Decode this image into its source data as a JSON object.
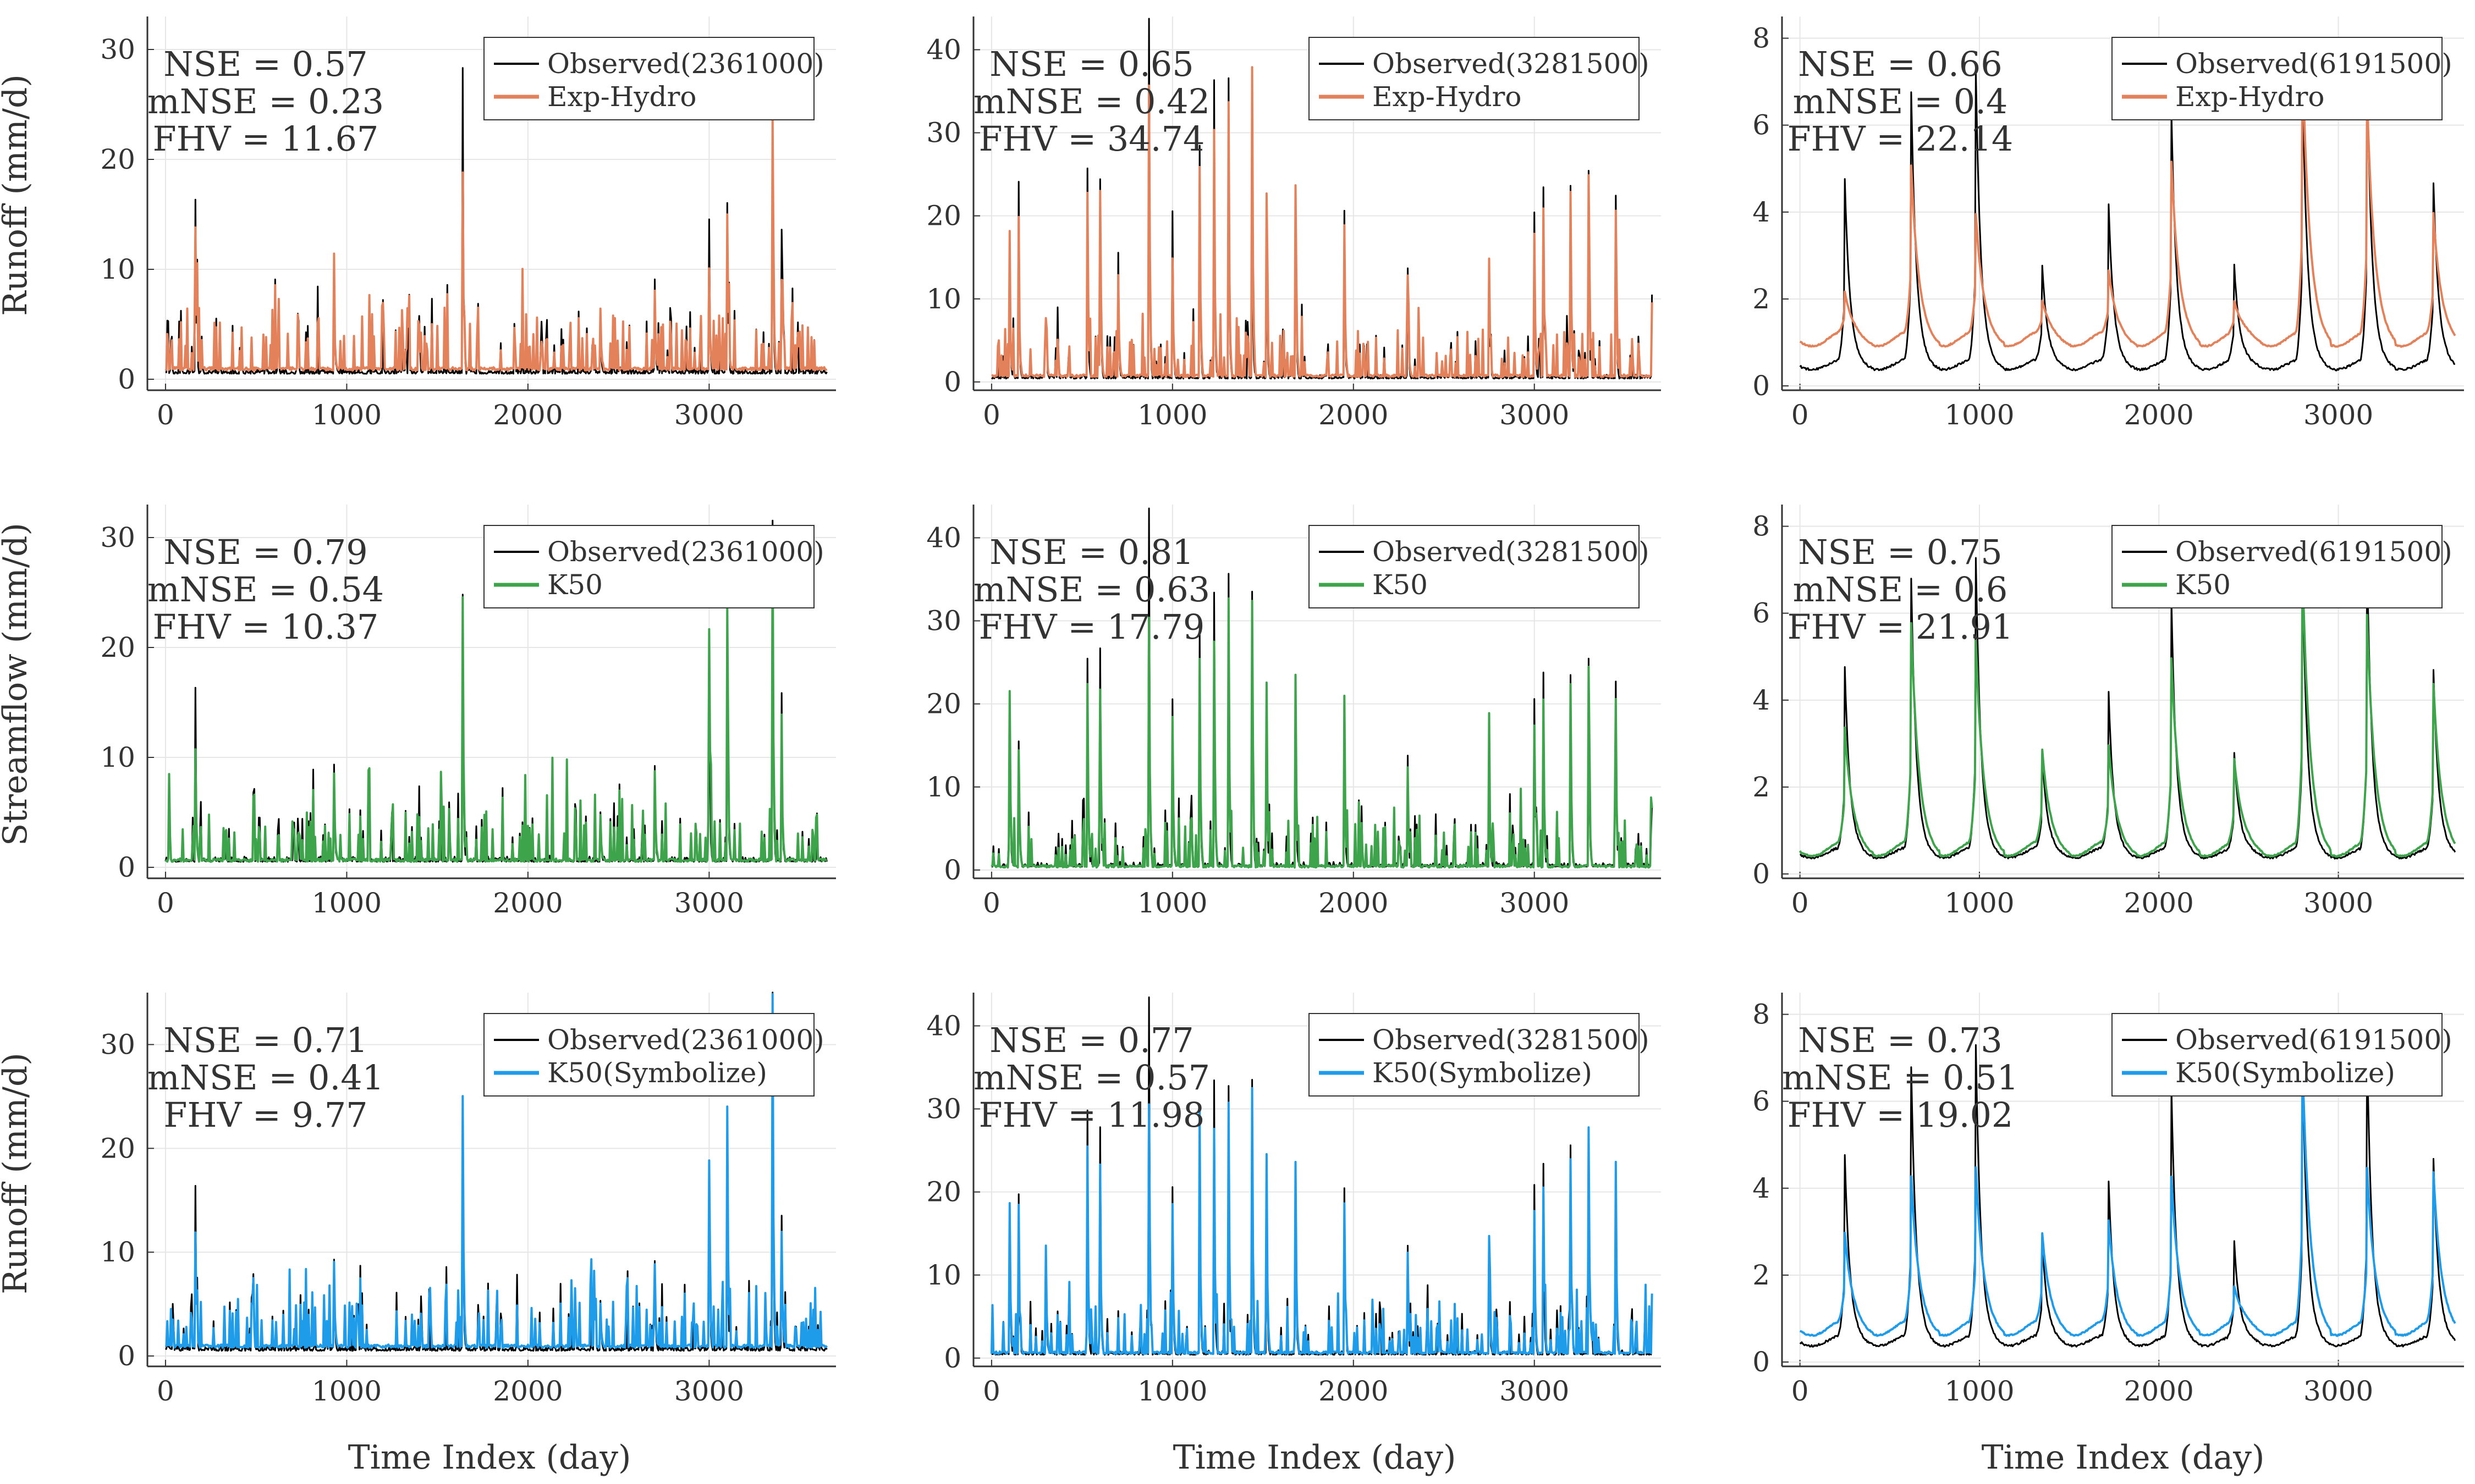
{
  "row_ylabels": [
    "Runoff (mm/d)",
    "Streamflow (mm/d)",
    "Runoff (mm/d)"
  ],
  "xlabel": "Time Index (day)",
  "colors": {
    "observed": "#000000",
    "exp_hydro": "#e2815a",
    "k50": "#3ea44b",
    "k50_symbolize": "#1e9be9"
  },
  "chart_data": [
    {
      "type": "line",
      "row": 0,
      "col": 0,
      "xlim": [
        -100,
        3700
      ],
      "ylim": [
        -1,
        33
      ],
      "xticks": [
        0,
        1000,
        2000,
        3000
      ],
      "yticks": [
        0,
        10,
        20,
        30
      ],
      "tick_labels_x": [
        "0",
        "1000",
        "2000",
        "3000"
      ],
      "tick_labels_y": [
        "0",
        "10",
        "20",
        "30"
      ],
      "metrics": [
        "NSE = 0.57",
        "mNSE = 0.23",
        "FHV = 11.67"
      ],
      "series": [
        {
          "name": "Observed(2361000)",
          "color": "#000000"
        },
        {
          "name": "Exp-Hydro",
          "color": "#e2815a"
        }
      ],
      "profile": "flashy",
      "peaks": [
        [
          165,
          15.8,
          13.0
        ],
        [
          930,
          8.7,
          6.5
        ],
        [
          1640,
          24.0,
          16.0
        ],
        [
          3000,
          14.0,
          9.0
        ],
        [
          3100,
          15.5,
          14.0
        ],
        [
          3350,
          24.0,
          23.0
        ],
        [
          3400,
          13.0,
          8.0
        ],
        [
          2700,
          8.5,
          7.0
        ],
        [
          2400,
          4.5,
          5.5
        ]
      ],
      "base": [
        0.5,
        0.8
      ]
    },
    {
      "type": "line",
      "row": 0,
      "col": 1,
      "xlim": [
        -100,
        3700
      ],
      "ylim": [
        -1,
        44
      ],
      "xticks": [
        0,
        1000,
        2000,
        3000
      ],
      "yticks": [
        0,
        10,
        20,
        30,
        40
      ],
      "tick_labels_x": [
        "0",
        "1000",
        "2000",
        "3000"
      ],
      "tick_labels_y": [
        "0",
        "10",
        "20",
        "30",
        "40"
      ],
      "metrics": [
        "NSE = 0.65",
        "mNSE = 0.42",
        "FHV = 34.74"
      ],
      "series": [
        {
          "name": "Observed(3281500)",
          "color": "#000000"
        },
        {
          "name": "Exp-Hydro",
          "color": "#e2815a"
        }
      ],
      "profile": "flashy",
      "peaks": [
        [
          100,
          15,
          12
        ],
        [
          150,
          17,
          14
        ],
        [
          300,
          7,
          7
        ],
        [
          530,
          25,
          22
        ],
        [
          600,
          24,
          20
        ],
        [
          700,
          15,
          12
        ],
        [
          870,
          43,
          35
        ],
        [
          1000,
          20,
          14
        ],
        [
          1150,
          28,
          25
        ],
        [
          1230,
          33,
          27
        ],
        [
          1310,
          32,
          30
        ],
        [
          1440,
          24,
          37
        ],
        [
          1520,
          20,
          22
        ],
        [
          1680,
          23,
          23
        ],
        [
          1950,
          20,
          18
        ],
        [
          2300,
          13,
          12
        ],
        [
          2750,
          13,
          14
        ],
        [
          3000,
          20,
          17
        ],
        [
          3050,
          23,
          20
        ],
        [
          3200,
          23,
          22
        ],
        [
          3300,
          25,
          24
        ],
        [
          3450,
          22,
          20
        ],
        [
          3650,
          7,
          7
        ]
      ],
      "base": [
        0.4,
        0.6
      ]
    },
    {
      "type": "line",
      "row": 0,
      "col": 2,
      "xlim": [
        -100,
        3700
      ],
      "ylim": [
        -0.1,
        8.5
      ],
      "xticks": [
        0,
        1000,
        2000,
        3000
      ],
      "yticks": [
        0,
        2,
        4,
        6,
        8
      ],
      "tick_labels_x": [
        "0",
        "1000",
        "2000",
        "3000"
      ],
      "tick_labels_y": [
        "0",
        "2",
        "4",
        "6",
        "8"
      ],
      "metrics": [
        "NSE = 0.66",
        "mNSE = 0.4",
        "FHV = 22.14"
      ],
      "series": [
        {
          "name": "Observed(6191500)",
          "color": "#000000"
        },
        {
          "name": "Exp-Hydro",
          "color": "#e2815a"
        }
      ],
      "profile": "seasonal",
      "peaks": [
        [
          250,
          4.5,
          1.8
        ],
        [
          620,
          6.5,
          4.7
        ],
        [
          980,
          7.0,
          3.6
        ],
        [
          1350,
          2.5,
          1.6
        ],
        [
          1720,
          3.9,
          2.3
        ],
        [
          2070,
          6.0,
          4.8
        ],
        [
          2420,
          2.5,
          1.6
        ],
        [
          2800,
          6.8,
          7.2
        ],
        [
          3160,
          7.0,
          6.3
        ],
        [
          3530,
          4.4,
          3.6
        ]
      ],
      "base": [
        0.35,
        0.9
      ]
    },
    {
      "type": "line",
      "row": 1,
      "col": 0,
      "xlim": [
        -100,
        3700
      ],
      "ylim": [
        -1,
        33
      ],
      "xticks": [
        0,
        1000,
        2000,
        3000
      ],
      "yticks": [
        0,
        10,
        20,
        30
      ],
      "tick_labels_x": [
        "0",
        "1000",
        "2000",
        "3000"
      ],
      "tick_labels_y": [
        "0",
        "10",
        "20",
        "30"
      ],
      "metrics": [
        "NSE = 0.79",
        "mNSE = 0.54",
        "FHV = 10.37"
      ],
      "series": [
        {
          "name": "Observed(2361000)",
          "color": "#000000"
        },
        {
          "name": "K50",
          "color": "#3ea44b"
        }
      ],
      "profile": "flashy",
      "peaks": [
        [
          165,
          15.8,
          10.0
        ],
        [
          930,
          8.7,
          8.0
        ],
        [
          1640,
          24.0,
          24.0
        ],
        [
          3000,
          21.0,
          21.0
        ],
        [
          3100,
          23.0,
          23.0
        ],
        [
          3350,
          31.0,
          30.0
        ],
        [
          3400,
          13.0,
          11.0
        ],
        [
          2700,
          8.5,
          8.0
        ],
        [
          2400,
          4.5,
          4.0
        ]
      ],
      "base": [
        0.5,
        0.5
      ]
    },
    {
      "type": "line",
      "row": 1,
      "col": 1,
      "xlim": [
        -100,
        3700
      ],
      "ylim": [
        -1,
        44
      ],
      "xticks": [
        0,
        1000,
        2000,
        3000
      ],
      "yticks": [
        0,
        10,
        20,
        30,
        40
      ],
      "tick_labels_x": [
        "0",
        "1000",
        "2000",
        "3000"
      ],
      "tick_labels_y": [
        "0",
        "10",
        "20",
        "30",
        "40"
      ],
      "metrics": [
        "NSE = 0.81",
        "mNSE = 0.63",
        "FHV = 17.79"
      ],
      "series": [
        {
          "name": "Observed(3281500)",
          "color": "#000000"
        },
        {
          "name": "K50",
          "color": "#3ea44b"
        }
      ],
      "profile": "flashy",
      "peaks": [
        [
          100,
          21,
          21
        ],
        [
          150,
          15,
          14
        ],
        [
          530,
          25,
          22
        ],
        [
          600,
          24,
          20
        ],
        [
          870,
          43,
          30
        ],
        [
          1000,
          20,
          18
        ],
        [
          1150,
          28,
          25
        ],
        [
          1230,
          33,
          27
        ],
        [
          1310,
          32,
          30
        ],
        [
          1440,
          33,
          32
        ],
        [
          1520,
          20,
          22
        ],
        [
          1680,
          23,
          23
        ],
        [
          1950,
          20,
          18
        ],
        [
          2300,
          13,
          12
        ],
        [
          2750,
          13,
          14
        ],
        [
          3000,
          20,
          17
        ],
        [
          3050,
          23,
          20
        ],
        [
          3200,
          23,
          22
        ],
        [
          3300,
          25,
          24
        ],
        [
          3450,
          22,
          20
        ],
        [
          3650,
          7,
          7
        ]
      ],
      "base": [
        0.4,
        0.3
      ]
    },
    {
      "type": "line",
      "row": 1,
      "col": 2,
      "xlim": [
        -100,
        3700
      ],
      "ylim": [
        -0.1,
        8.5
      ],
      "xticks": [
        0,
        1000,
        2000,
        3000
      ],
      "yticks": [
        0,
        2,
        4,
        6,
        8
      ],
      "tick_labels_x": [
        "0",
        "1000",
        "2000",
        "3000"
      ],
      "tick_labels_y": [
        "0",
        "2",
        "4",
        "6",
        "8"
      ],
      "metrics": [
        "NSE = 0.75",
        "mNSE = 0.6",
        "FHV = 21.91"
      ],
      "series": [
        {
          "name": "Observed(6191500)",
          "color": "#000000"
        },
        {
          "name": "K50",
          "color": "#3ea44b"
        }
      ],
      "profile": "seasonal",
      "peaks": [
        [
          250,
          4.5,
          3.0
        ],
        [
          620,
          6.5,
          5.4
        ],
        [
          980,
          7.0,
          5.0
        ],
        [
          1350,
          2.5,
          2.5
        ],
        [
          1720,
          3.9,
          2.6
        ],
        [
          2070,
          6.0,
          4.6
        ],
        [
          2420,
          2.5,
          2.3
        ],
        [
          2800,
          6.8,
          6.7
        ],
        [
          3160,
          7.0,
          5.6
        ],
        [
          3530,
          4.4,
          4.0
        ]
      ],
      "base": [
        0.35,
        0.4
      ]
    },
    {
      "type": "line",
      "row": 2,
      "col": 0,
      "xlim": [
        -100,
        3700
      ],
      "ylim": [
        -1,
        35
      ],
      "xticks": [
        0,
        1000,
        2000,
        3000
      ],
      "yticks": [
        0,
        10,
        20,
        30
      ],
      "tick_labels_x": [
        "0",
        "1000",
        "2000",
        "3000"
      ],
      "tick_labels_y": [
        "0",
        "10",
        "20",
        "30"
      ],
      "metrics": [
        "NSE = 0.71",
        "mNSE = 0.41",
        "FHV = 9.77"
      ],
      "series": [
        {
          "name": "Observed(2361000)",
          "color": "#000000"
        },
        {
          "name": "K50(Symbolize)",
          "color": "#1e9be9"
        }
      ],
      "profile": "flashy",
      "peaks": [
        [
          165,
          15.8,
          11.0
        ],
        [
          930,
          8.7,
          8.0
        ],
        [
          1640,
          24.0,
          24.0
        ],
        [
          3000,
          18.0,
          18.0
        ],
        [
          3100,
          23.0,
          23.0
        ],
        [
          3350,
          34.0,
          34.0
        ],
        [
          3400,
          13.0,
          11.0
        ],
        [
          2700,
          8.5,
          8.0
        ],
        [
          2400,
          4.5,
          4.0
        ]
      ],
      "base": [
        0.5,
        0.8
      ]
    },
    {
      "type": "line",
      "row": 2,
      "col": 1,
      "xlim": [
        -100,
        3700
      ],
      "ylim": [
        -1,
        44
      ],
      "xticks": [
        0,
        1000,
        2000,
        3000
      ],
      "yticks": [
        0,
        10,
        20,
        30,
        40
      ],
      "tick_labels_x": [
        "0",
        "1000",
        "2000",
        "3000"
      ],
      "tick_labels_y": [
        "0",
        "10",
        "20",
        "30",
        "40"
      ],
      "metrics": [
        "NSE = 0.77",
        "mNSE = 0.57",
        "FHV = 11.98"
      ],
      "series": [
        {
          "name": "Observed(3281500)",
          "color": "#000000"
        },
        {
          "name": "K50(Symbolize)",
          "color": "#1e9be9"
        }
      ],
      "profile": "flashy",
      "peaks": [
        [
          100,
          18,
          18
        ],
        [
          150,
          15,
          14
        ],
        [
          300,
          13,
          13
        ],
        [
          530,
          25,
          22
        ],
        [
          600,
          24,
          20
        ],
        [
          870,
          43,
          30
        ],
        [
          1000,
          20,
          18
        ],
        [
          1150,
          28,
          25
        ],
        [
          1230,
          33,
          27
        ],
        [
          1310,
          32,
          30
        ],
        [
          1440,
          33,
          32
        ],
        [
          1520,
          20,
          22
        ],
        [
          1680,
          23,
          23
        ],
        [
          1950,
          20,
          18
        ],
        [
          2300,
          13,
          12
        ],
        [
          2750,
          13,
          14
        ],
        [
          3000,
          20,
          17
        ],
        [
          3050,
          23,
          20
        ],
        [
          3200,
          23,
          22
        ],
        [
          3300,
          27,
          27
        ],
        [
          3450,
          23,
          23
        ],
        [
          3650,
          7,
          7
        ]
      ],
      "base": [
        0.4,
        0.5
      ]
    },
    {
      "type": "line",
      "row": 2,
      "col": 2,
      "xlim": [
        -100,
        3700
      ],
      "ylim": [
        -0.1,
        8.5
      ],
      "xticks": [
        0,
        1000,
        2000,
        3000
      ],
      "yticks": [
        0,
        2,
        4,
        6,
        8
      ],
      "tick_labels_x": [
        "0",
        "1000",
        "2000",
        "3000"
      ],
      "tick_labels_y": [
        "0",
        "2",
        "4",
        "6",
        "8"
      ],
      "metrics": [
        "NSE = 0.73",
        "mNSE = 0.51",
        "FHV = 19.02"
      ],
      "series": [
        {
          "name": "Observed(6191500)",
          "color": "#000000"
        },
        {
          "name": "K50(Symbolize)",
          "color": "#1e9be9"
        }
      ],
      "profile": "seasonal",
      "peaks": [
        [
          250,
          4.5,
          2.6
        ],
        [
          620,
          6.5,
          3.9
        ],
        [
          980,
          7.0,
          4.1
        ],
        [
          1350,
          2.5,
          2.6
        ],
        [
          1720,
          3.9,
          2.9
        ],
        [
          2070,
          6.0,
          3.9
        ],
        [
          2420,
          2.5,
          1.4
        ],
        [
          2800,
          6.8,
          6.6
        ],
        [
          3160,
          7.0,
          4.1
        ],
        [
          3530,
          4.4,
          4.0
        ]
      ],
      "base": [
        0.35,
        0.6
      ]
    }
  ]
}
